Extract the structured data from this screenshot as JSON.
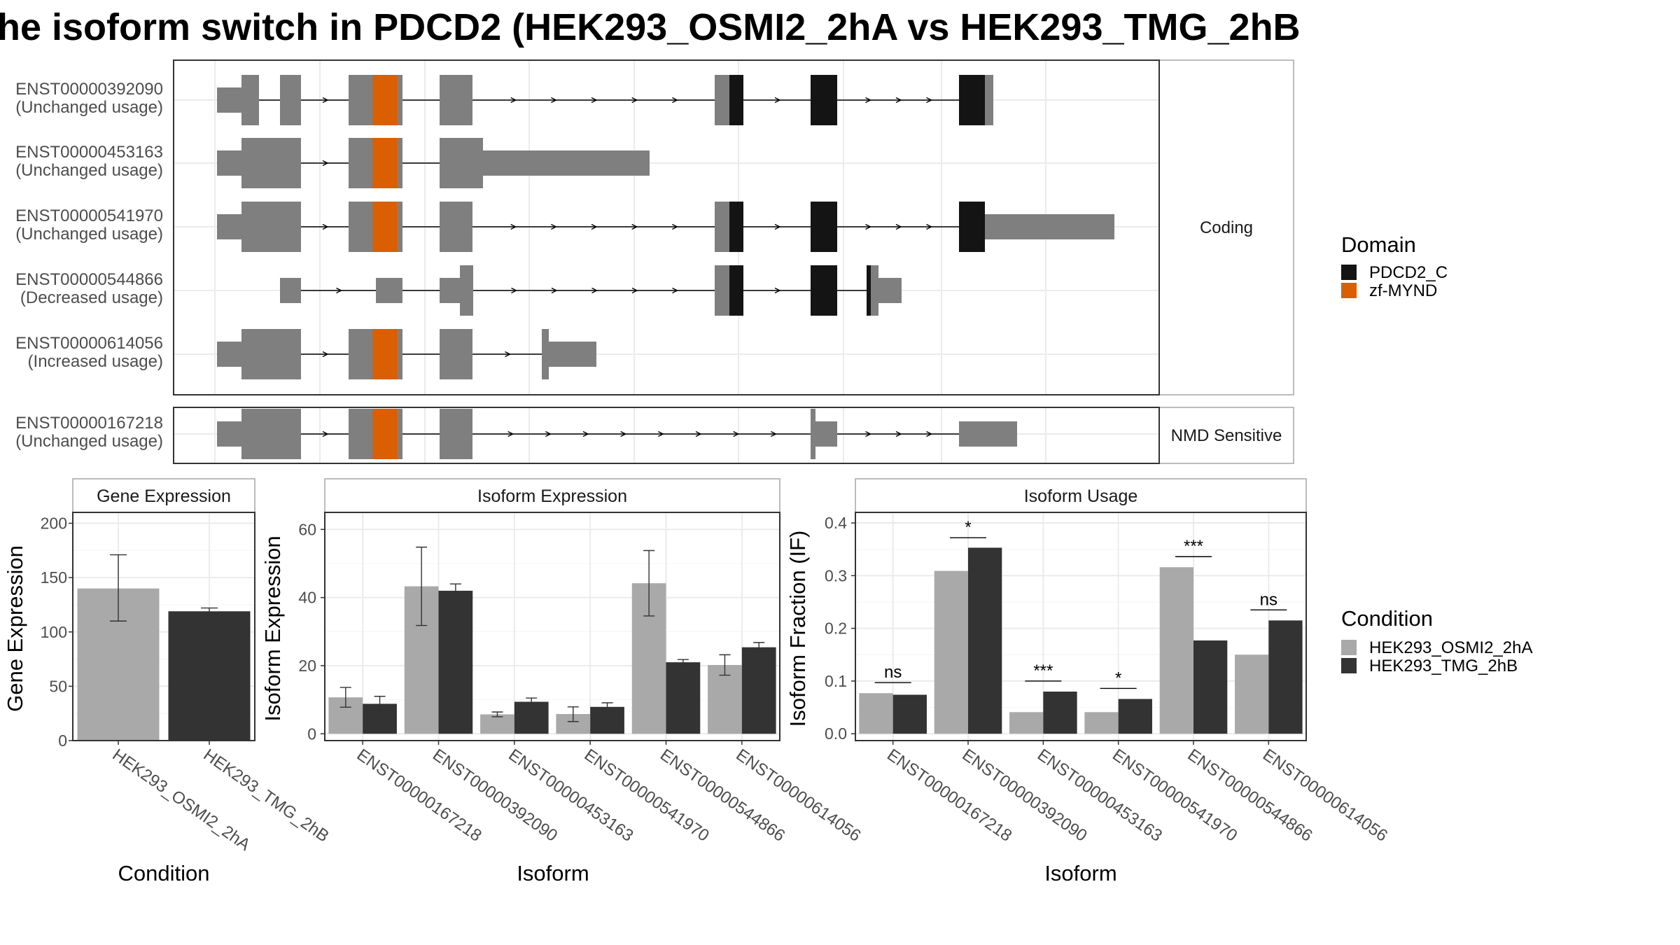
{
  "title": "he isoform switch in PDCD2 (HEK293_OSMI2_2hA vs HEK293_TMG_2hB",
  "colors": {
    "exon": "#7f7f7f",
    "pdcd2_c": "#141414",
    "zf_mynd": "#d95f02",
    "cond_a": "#a9a9a9",
    "cond_b": "#333333",
    "grid": "#ebebeb",
    "panel_border": "#333333",
    "strip_border": "#a6a6a6"
  },
  "transcripts": {
    "coding_label": "Coding",
    "nmd_label": "NMD Sensitive",
    "rows": [
      {
        "id": "ENST00000392090",
        "usage": "(Unchanged usage)"
      },
      {
        "id": "ENST00000453163",
        "usage": "(Unchanged usage)"
      },
      {
        "id": "ENST00000541970",
        "usage": "(Unchanged usage)"
      },
      {
        "id": "ENST00000544866",
        "usage": "(Decreased usage)"
      },
      {
        "id": "ENST00000614056",
        "usage": "(Increased usage)"
      },
      {
        "id": "ENST00000167218",
        "usage": "(Unchanged usage)"
      }
    ]
  },
  "legend_domain": {
    "title": "Domain",
    "items": [
      {
        "label": "PDCD2_C",
        "color": "#141414"
      },
      {
        "label": "zf-MYND",
        "color": "#d95f02"
      }
    ]
  },
  "legend_condition": {
    "title": "Condition",
    "items": [
      {
        "label": "HEK293_OSMI2_2hA",
        "color": "#a9a9a9"
      },
      {
        "label": "HEK293_TMG_2hB",
        "color": "#333333"
      }
    ]
  },
  "chart_data": [
    {
      "type": "bar",
      "strip": "Gene Expression",
      "xlabel": "Condition",
      "ylabel": "Gene Expression",
      "ylim": [
        0,
        210
      ],
      "yticks": [
        0,
        50,
        100,
        150,
        200
      ],
      "categories": [
        "HEK293_OSMI2_2hA",
        "HEK293_TMG_2hB"
      ],
      "values": [
        140,
        119
      ],
      "errors": [
        [
          110,
          171
        ],
        [
          117,
          122
        ]
      ]
    },
    {
      "type": "bar",
      "strip": "Isoform Expression",
      "xlabel": "Isoform",
      "ylabel": "Isoform Expression",
      "ylim": [
        -2,
        65
      ],
      "yticks": [
        0,
        20,
        40,
        60
      ],
      "categories": [
        "ENST00000167218",
        "ENST00000392090",
        "ENST00000453163",
        "ENST00000541970",
        "ENST00000544866",
        "ENST00000614056"
      ],
      "series": [
        {
          "name": "HEK293_OSMI2_2hA",
          "values": [
            10.7,
            43.3,
            5.7,
            5.8,
            44.2,
            20.2
          ],
          "errors": [
            [
              7.8,
              13.6
            ],
            [
              31.8,
              54.8
            ],
            [
              5.0,
              6.4
            ],
            [
              3.6,
              7.9
            ],
            [
              34.6,
              53.8
            ],
            [
              17.2,
              23.2
            ]
          ]
        },
        {
          "name": "HEK293_TMG_2hB",
          "values": [
            8.8,
            42.0,
            9.4,
            7.9,
            21.0,
            25.4
          ],
          "errors": [
            [
              6.6,
              11.0
            ],
            [
              39.8,
              44.0
            ],
            [
              8.2,
              10.5
            ],
            [
              6.7,
              9.1
            ],
            [
              20.2,
              21.8
            ],
            [
              24.0,
              26.8
            ]
          ]
        }
      ]
    },
    {
      "type": "bar",
      "strip": "Isoform Usage",
      "xlabel": "Isoform",
      "ylabel": "Isoform Fraction (IF)",
      "ylim": [
        -0.013,
        0.42
      ],
      "yticks": [
        0.0,
        0.1,
        0.2,
        0.3,
        0.4
      ],
      "yticklabels": [
        "0.0",
        "0.1",
        "0.2",
        "0.3",
        "0.4"
      ],
      "categories": [
        "ENST00000167218",
        "ENST00000392090",
        "ENST00000453163",
        "ENST00000541970",
        "ENST00000544866",
        "ENST00000614056"
      ],
      "series": [
        {
          "name": "HEK293_OSMI2_2hA",
          "values": [
            0.077,
            0.309,
            0.041,
            0.041,
            0.316,
            0.15
          ]
        },
        {
          "name": "HEK293_TMG_2hB",
          "values": [
            0.074,
            0.353,
            0.08,
            0.066,
            0.177,
            0.215
          ]
        }
      ],
      "significance": [
        "ns",
        "*",
        "***",
        "*",
        "***",
        "ns"
      ],
      "sig_levels": [
        0.097,
        0.372,
        0.1,
        0.086,
        0.336,
        0.235
      ]
    }
  ]
}
